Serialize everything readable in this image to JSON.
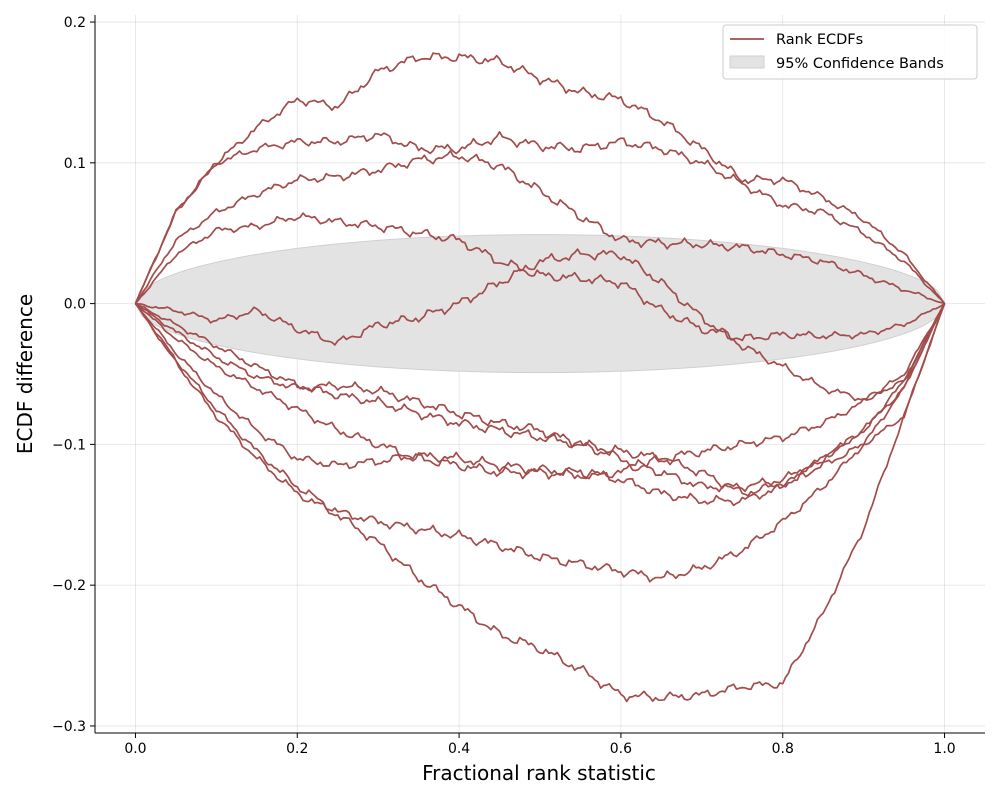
{
  "chart_data": {
    "type": "line",
    "title": "",
    "xlabel": "Fractional rank statistic",
    "ylabel": "ECDF difference",
    "xlim": [
      -0.05,
      1.05
    ],
    "ylim": [
      -0.305,
      0.205
    ],
    "xticks": [
      0.0,
      0.2,
      0.4,
      0.6,
      0.8,
      1.0
    ],
    "xtick_labels": [
      "0.0",
      "0.2",
      "0.4",
      "0.6",
      "0.8",
      "1.0"
    ],
    "yticks": [
      0.2,
      0.1,
      0.0,
      -0.1,
      -0.2,
      -0.3
    ],
    "ytick_labels": [
      "0.2",
      "0.1",
      "0.0",
      "−0.1",
      "−0.2",
      "−0.3"
    ],
    "grid": true,
    "legend_position": "top-right",
    "legend": [
      {
        "label": "Rank ECDFs",
        "kind": "line"
      },
      {
        "label": "95% Confidence Bands",
        "kind": "patch"
      }
    ],
    "colors": {
      "line": "#a34c4c",
      "band": "#e3e3e3",
      "band_edge": "#d0d0d0"
    },
    "confidence_band": {
      "half_width": 0.049
    },
    "series": [
      {
        "points": [
          [
            0,
            0
          ],
          [
            0.05,
            0.065
          ],
          [
            0.1,
            0.1
          ],
          [
            0.15,
            0.125
          ],
          [
            0.2,
            0.145
          ],
          [
            0.25,
            0.14
          ],
          [
            0.3,
            0.165
          ],
          [
            0.35,
            0.175
          ],
          [
            0.4,
            0.175
          ],
          [
            0.45,
            0.172
          ],
          [
            0.5,
            0.16
          ],
          [
            0.55,
            0.15
          ],
          [
            0.6,
            0.145
          ],
          [
            0.65,
            0.13
          ],
          [
            0.7,
            0.11
          ],
          [
            0.75,
            0.088
          ],
          [
            0.8,
            0.088
          ],
          [
            0.85,
            0.075
          ],
          [
            0.9,
            0.06
          ],
          [
            0.95,
            0.035
          ],
          [
            1,
            0
          ]
        ]
      },
      {
        "points": [
          [
            0,
            0
          ],
          [
            0.05,
            0.065
          ],
          [
            0.1,
            0.1
          ],
          [
            0.15,
            0.11
          ],
          [
            0.2,
            0.115
          ],
          [
            0.25,
            0.115
          ],
          [
            0.3,
            0.12
          ],
          [
            0.35,
            0.11
          ],
          [
            0.4,
            0.11
          ],
          [
            0.45,
            0.118
          ],
          [
            0.5,
            0.112
          ],
          [
            0.55,
            0.11
          ],
          [
            0.6,
            0.115
          ],
          [
            0.65,
            0.11
          ],
          [
            0.7,
            0.1
          ],
          [
            0.75,
            0.085
          ],
          [
            0.8,
            0.07
          ],
          [
            0.85,
            0.065
          ],
          [
            0.9,
            0.05
          ],
          [
            0.95,
            0.03
          ],
          [
            1,
            0
          ]
        ]
      },
      {
        "points": [
          [
            0,
            0
          ],
          [
            0.05,
            0.045
          ],
          [
            0.1,
            0.065
          ],
          [
            0.15,
            0.078
          ],
          [
            0.2,
            0.088
          ],
          [
            0.25,
            0.09
          ],
          [
            0.3,
            0.095
          ],
          [
            0.35,
            0.102
          ],
          [
            0.4,
            0.105
          ],
          [
            0.45,
            0.098
          ],
          [
            0.5,
            0.08
          ],
          [
            0.55,
            0.062
          ],
          [
            0.6,
            0.045
          ],
          [
            0.65,
            0.043
          ],
          [
            0.7,
            0.042
          ],
          [
            0.75,
            0.04
          ],
          [
            0.8,
            0.035
          ],
          [
            0.85,
            0.03
          ],
          [
            0.9,
            0.02
          ],
          [
            0.95,
            0.01
          ],
          [
            1,
            0
          ]
        ]
      },
      {
        "points": [
          [
            0,
            0
          ],
          [
            0.05,
            0.035
          ],
          [
            0.1,
            0.052
          ],
          [
            0.15,
            0.055
          ],
          [
            0.2,
            0.062
          ],
          [
            0.25,
            0.058
          ],
          [
            0.3,
            0.055
          ],
          [
            0.35,
            0.05
          ],
          [
            0.4,
            0.045
          ],
          [
            0.45,
            0.03
          ],
          [
            0.5,
            0.02
          ],
          [
            0.55,
            0.018
          ],
          [
            0.6,
            0.015
          ],
          [
            0.65,
            -0.005
          ],
          [
            0.7,
            -0.018
          ],
          [
            0.75,
            -0.025
          ],
          [
            0.8,
            -0.022
          ],
          [
            0.85,
            -0.023
          ],
          [
            0.9,
            -0.022
          ],
          [
            0.95,
            -0.015
          ],
          [
            1,
            0
          ]
        ]
      },
      {
        "points": [
          [
            0,
            0
          ],
          [
            0.05,
            -0.005
          ],
          [
            0.1,
            -0.012
          ],
          [
            0.15,
            -0.005
          ],
          [
            0.2,
            -0.018
          ],
          [
            0.25,
            -0.028
          ],
          [
            0.3,
            -0.015
          ],
          [
            0.35,
            -0.01
          ],
          [
            0.4,
            0.0
          ],
          [
            0.45,
            0.015
          ],
          [
            0.5,
            0.03
          ],
          [
            0.55,
            0.035
          ],
          [
            0.6,
            0.035
          ],
          [
            0.65,
            0.015
          ],
          [
            0.7,
            -0.01
          ],
          [
            0.75,
            -0.03
          ],
          [
            0.8,
            -0.045
          ],
          [
            0.85,
            -0.06
          ],
          [
            0.9,
            -0.068
          ],
          [
            0.95,
            -0.055
          ],
          [
            1,
            0
          ]
        ]
      },
      {
        "points": [
          [
            0,
            0
          ],
          [
            0.05,
            -0.015
          ],
          [
            0.1,
            -0.03
          ],
          [
            0.15,
            -0.045
          ],
          [
            0.2,
            -0.058
          ],
          [
            0.25,
            -0.065
          ],
          [
            0.3,
            -0.07
          ],
          [
            0.35,
            -0.078
          ],
          [
            0.4,
            -0.085
          ],
          [
            0.45,
            -0.09
          ],
          [
            0.5,
            -0.095
          ],
          [
            0.55,
            -0.1
          ],
          [
            0.6,
            -0.11
          ],
          [
            0.65,
            -0.12
          ],
          [
            0.7,
            -0.13
          ],
          [
            0.75,
            -0.13
          ],
          [
            0.8,
            -0.125
          ],
          [
            0.85,
            -0.11
          ],
          [
            0.9,
            -0.09
          ],
          [
            0.95,
            -0.06
          ],
          [
            1,
            0
          ]
        ]
      },
      {
        "points": [
          [
            0,
            0
          ],
          [
            0.05,
            -0.02
          ],
          [
            0.1,
            -0.038
          ],
          [
            0.15,
            -0.052
          ],
          [
            0.2,
            -0.06
          ],
          [
            0.25,
            -0.058
          ],
          [
            0.3,
            -0.062
          ],
          [
            0.35,
            -0.07
          ],
          [
            0.4,
            -0.078
          ],
          [
            0.45,
            -0.085
          ],
          [
            0.5,
            -0.09
          ],
          [
            0.55,
            -0.1
          ],
          [
            0.6,
            -0.105
          ],
          [
            0.65,
            -0.11
          ],
          [
            0.7,
            -0.12
          ],
          [
            0.75,
            -0.135
          ],
          [
            0.8,
            -0.128
          ],
          [
            0.85,
            -0.115
          ],
          [
            0.9,
            -0.1
          ],
          [
            0.95,
            -0.08
          ],
          [
            1,
            0
          ]
        ]
      },
      {
        "points": [
          [
            0,
            0
          ],
          [
            0.05,
            -0.025
          ],
          [
            0.1,
            -0.045
          ],
          [
            0.15,
            -0.06
          ],
          [
            0.2,
            -0.075
          ],
          [
            0.25,
            -0.09
          ],
          [
            0.3,
            -0.1
          ],
          [
            0.35,
            -0.11
          ],
          [
            0.4,
            -0.115
          ],
          [
            0.45,
            -0.12
          ],
          [
            0.5,
            -0.12
          ],
          [
            0.55,
            -0.122
          ],
          [
            0.6,
            -0.12
          ],
          [
            0.65,
            -0.11
          ],
          [
            0.7,
            -0.105
          ],
          [
            0.75,
            -0.1
          ],
          [
            0.8,
            -0.095
          ],
          [
            0.85,
            -0.085
          ],
          [
            0.9,
            -0.07
          ],
          [
            0.95,
            -0.05
          ],
          [
            1,
            0
          ]
        ]
      },
      {
        "points": [
          [
            0,
            0
          ],
          [
            0.05,
            -0.035
          ],
          [
            0.1,
            -0.065
          ],
          [
            0.15,
            -0.09
          ],
          [
            0.2,
            -0.11
          ],
          [
            0.25,
            -0.115
          ],
          [
            0.3,
            -0.112
          ],
          [
            0.35,
            -0.108
          ],
          [
            0.4,
            -0.11
          ],
          [
            0.45,
            -0.115
          ],
          [
            0.5,
            -0.118
          ],
          [
            0.55,
            -0.12
          ],
          [
            0.6,
            -0.125
          ],
          [
            0.65,
            -0.135
          ],
          [
            0.7,
            -0.14
          ],
          [
            0.75,
            -0.14
          ],
          [
            0.8,
            -0.13
          ],
          [
            0.85,
            -0.11
          ],
          [
            0.9,
            -0.09
          ],
          [
            0.95,
            -0.055
          ],
          [
            1,
            0
          ]
        ]
      },
      {
        "points": [
          [
            0,
            0
          ],
          [
            0.05,
            -0.04
          ],
          [
            0.1,
            -0.075
          ],
          [
            0.15,
            -0.105
          ],
          [
            0.2,
            -0.13
          ],
          [
            0.25,
            -0.148
          ],
          [
            0.3,
            -0.155
          ],
          [
            0.35,
            -0.16
          ],
          [
            0.4,
            -0.165
          ],
          [
            0.45,
            -0.172
          ],
          [
            0.5,
            -0.18
          ],
          [
            0.55,
            -0.185
          ],
          [
            0.6,
            -0.19
          ],
          [
            0.65,
            -0.195
          ],
          [
            0.7,
            -0.188
          ],
          [
            0.75,
            -0.175
          ],
          [
            0.8,
            -0.155
          ],
          [
            0.85,
            -0.13
          ],
          [
            0.9,
            -0.1
          ],
          [
            0.95,
            -0.06
          ],
          [
            1,
            0
          ]
        ]
      },
      {
        "points": [
          [
            0,
            0
          ],
          [
            0.05,
            -0.042
          ],
          [
            0.1,
            -0.08
          ],
          [
            0.15,
            -0.11
          ],
          [
            0.2,
            -0.135
          ],
          [
            0.25,
            -0.15
          ],
          [
            0.3,
            -0.17
          ],
          [
            0.35,
            -0.195
          ],
          [
            0.4,
            -0.215
          ],
          [
            0.45,
            -0.235
          ],
          [
            0.5,
            -0.245
          ],
          [
            0.55,
            -0.26
          ],
          [
            0.6,
            -0.278
          ],
          [
            0.65,
            -0.28
          ],
          [
            0.7,
            -0.278
          ],
          [
            0.75,
            -0.272
          ],
          [
            0.8,
            -0.27
          ],
          [
            0.85,
            -0.22
          ],
          [
            0.9,
            -0.16
          ],
          [
            0.95,
            -0.08
          ],
          [
            1,
            0
          ]
        ]
      }
    ]
  }
}
